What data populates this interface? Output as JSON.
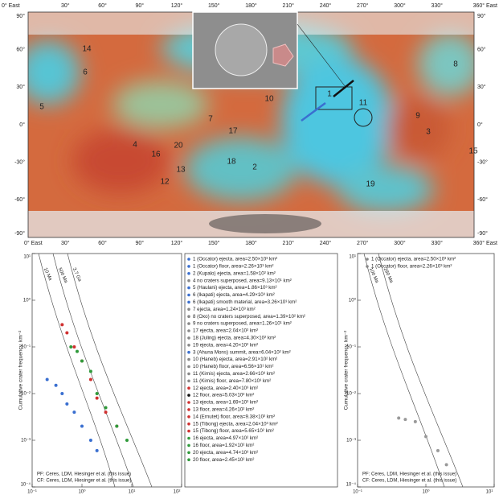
{
  "map": {
    "top_labels": [
      "0° East",
      "30°",
      "60°",
      "90°",
      "120°",
      "150°",
      "180°",
      "210°",
      "240°",
      "270°",
      "300°",
      "330°",
      "360° East"
    ],
    "left_labels": [
      "90°",
      "60°",
      "30°",
      "0°",
      "-30°",
      "-60°",
      "-90°"
    ],
    "sites": [
      "1",
      "2",
      "3",
      "4",
      "5",
      "6",
      "7",
      "8",
      "9",
      "10",
      "11",
      "12",
      "13",
      "14",
      "15",
      "16",
      "17",
      "18",
      "19",
      "20"
    ]
  },
  "chart_data": [
    {
      "type": "scatter",
      "ylabel": "Cumulative crater frequency, km⁻²",
      "xlim": [
        0.1,
        100
      ],
      "ylim": [
        0.0001,
        10
      ],
      "xticks": [
        {
          "value": 0.1,
          "label": "10⁻¹"
        },
        {
          "value": 1,
          "label": "10⁰"
        },
        {
          "value": 10,
          "label": "10¹"
        },
        {
          "value": 100,
          "label": "10²"
        }
      ],
      "yticks": [
        {
          "value": 10,
          "label": "10¹"
        },
        {
          "value": 1,
          "label": "10⁰"
        },
        {
          "value": 0.1,
          "label": "10⁻¹"
        },
        {
          "value": 0.01,
          "label": "10⁻²"
        },
        {
          "value": 0.001,
          "label": "10⁻³"
        },
        {
          "value": 0.0001,
          "label": "10⁻⁴"
        }
      ],
      "isochrons": [
        "10 Ma",
        "500 Ma",
        "3.7 Ga"
      ],
      "footnotes": [
        "PF: Ceres, LDM, Hiesinger et al. (this issue)",
        "CF: Ceres, LDM, Hiesinger et al. (this issue)"
      ],
      "series": [
        {
          "color": "#3a6fd0",
          "x": [
            0.2,
            0.3,
            0.4,
            0.5,
            0.7,
            1,
            1.5,
            2
          ],
          "values": [
            0.02,
            0.015,
            0.01,
            0.006,
            0.004,
            0.002,
            0.001,
            0.0006
          ]
        },
        {
          "color": "#d03030",
          "x": [
            0.4,
            0.5,
            0.7,
            1,
            1.5,
            2,
            3,
            5
          ],
          "values": [
            0.3,
            0.2,
            0.1,
            0.05,
            0.02,
            0.008,
            0.004,
            0.002
          ]
        },
        {
          "color": "#2f9a3a",
          "x": [
            0.6,
            0.8,
            1,
            1.5,
            2,
            3,
            5,
            8
          ],
          "values": [
            0.1,
            0.08,
            0.05,
            0.03,
            0.01,
            0.005,
            0.002,
            0.001
          ]
        }
      ],
      "legend": [
        {
          "label": "1 (Occator) ejecta, area=2.50×10³ km²",
          "color": "#3a6fd0"
        },
        {
          "label": "1 (Occator) floor, area=2.26×10³ km²",
          "color": "#3a6fd0"
        },
        {
          "label": "2 (Kupalo) ejecta, area=1.58×10² km²",
          "color": "#3a6fd0"
        },
        {
          "label": "4 no craters superposed, area=9.13×10¹ km²",
          "color": "#888888"
        },
        {
          "label": "5 (Haulani) ejecta, area=1.86×10³ km²",
          "color": "#3a6fd0"
        },
        {
          "label": "6 (Ikapati) ejecta, area=4.29×10³ km²",
          "color": "#3a6fd0"
        },
        {
          "label": "6 (Ikapati) smooth material, area=3.26×10³ km²",
          "color": "#3a6fd0"
        },
        {
          "label": "7 ejecta, area=1.24×10³ km²",
          "color": "#888888"
        },
        {
          "label": "8 (Oxo) no craters superposed, area=1.39×10² km²",
          "color": "#888888"
        },
        {
          "label": "9 no craters superposed, area=1.26×10¹ km²",
          "color": "#888888"
        },
        {
          "label": "17 ejecta, area=2.04×10² km²",
          "color": "#888888"
        },
        {
          "label": "18 (Juling) ejecta, area=4.30×10² km²",
          "color": "#888888"
        },
        {
          "label": "19 ejecta, area=4.20×10² km²",
          "color": "#888888"
        },
        {
          "label": "3 (Ahuna Mons) summit, area=6.04×10² km²",
          "color": "#3a6fd0"
        },
        {
          "label": "10 (Haneb) ejecta, area=2.91×10² km²",
          "color": "#888888"
        },
        {
          "label": "10 (Haneb) floor, area=6.56×10¹ km²",
          "color": "#888888"
        },
        {
          "label": "11 (Kirnis) ejecta, area=2.66×10³ km²",
          "color": "#888888"
        },
        {
          "label": "11 (Kirnis) floor, area=7.80×10³ km²",
          "color": "#888888"
        },
        {
          "label": "12 ejecta, area=2.40×10³ km²",
          "color": "#d03030"
        },
        {
          "label": "12 floor, area=5.03×10² km²",
          "color": "#111111"
        },
        {
          "label": "13 ejecta, area=1.69×10³ km²",
          "color": "#d03030"
        },
        {
          "label": "13 floor, area=4.26×10² km²",
          "color": "#d03030"
        },
        {
          "label": "14 (Ernutet) floor, area=9.38×10² km²",
          "color": "#d03030"
        },
        {
          "label": "15 (Tibong) ejecta, area=2.04×10³ km²",
          "color": "#d03030"
        },
        {
          "label": "15 (Tibong) floor, area=5.65×10² km²",
          "color": "#d03030"
        },
        {
          "label": "16 ejecta, area=4.97×10² km²",
          "color": "#2f9a3a"
        },
        {
          "label": "16 floor, area=1.92×10² km²",
          "color": "#2f9a3a"
        },
        {
          "label": "20 ejecta, area=4.74×10³ km²",
          "color": "#2f9a3a"
        },
        {
          "label": "20 floor, area=2.45×10² km²",
          "color": "#2f9a3a"
        }
      ]
    },
    {
      "type": "scatter",
      "ylabel": "Cumulative crater frequency, km⁻²",
      "xlim": [
        0.1,
        10
      ],
      "ylim": [
        0.0001,
        10
      ],
      "xticks": [
        {
          "value": 0.1,
          "label": "10⁻¹"
        },
        {
          "value": 1,
          "label": "10⁰"
        },
        {
          "value": 10,
          "label": "10¹"
        }
      ],
      "yticks": [
        {
          "value": 10,
          "label": "10¹"
        },
        {
          "value": 1,
          "label": "10⁰"
        },
        {
          "value": 0.1,
          "label": "10⁻¹"
        },
        {
          "value": 0.01,
          "label": "10⁻²"
        },
        {
          "value": 0.001,
          "label": "10⁻³"
        },
        {
          "value": 0.0001,
          "label": "10⁻⁴"
        }
      ],
      "isochrons": [
        "100 Ma",
        "280 Ma"
      ],
      "footnotes": [
        "PF: Ceres, LDM, Hiesinger et al. (this issue)",
        "CF: Ceres, LDM, Hiesinger et al. (this issue)"
      ],
      "series": [
        {
          "color": "#999999",
          "x": [
            0.4,
            0.5,
            0.7,
            1,
            1.5,
            2
          ],
          "values": [
            0.003,
            0.0028,
            0.0025,
            0.0012,
            0.0006,
            0.0003
          ]
        }
      ],
      "legend": [
        {
          "label": "1 (Occator) ejecta, area=2.50×10³ km²",
          "color": "#888888"
        },
        {
          "label": "1 (Occator) floor, area=2.26×10³ km²",
          "color": "#888888"
        }
      ]
    }
  ]
}
